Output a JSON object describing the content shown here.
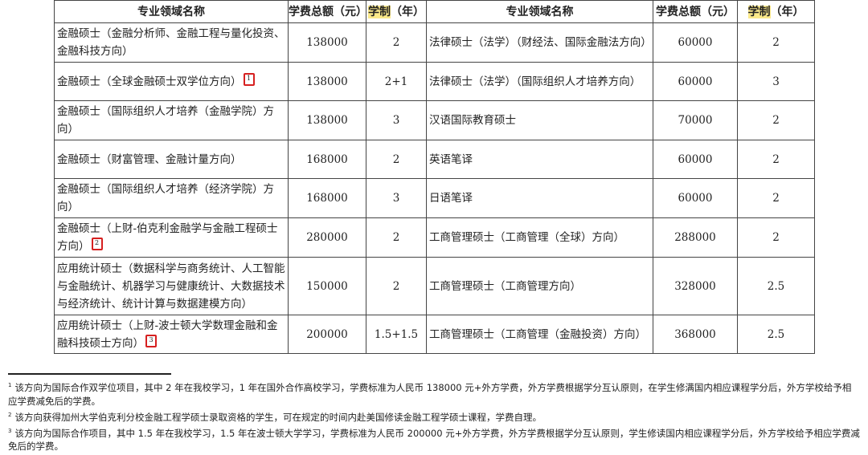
{
  "header": {
    "name": "专业领域名称",
    "fee": "学费总额（元）",
    "duration_hl": "学制",
    "duration_unit": "（年）"
  },
  "colors": {
    "highlight": "#fbe98a",
    "footnote_box": "#d62020"
  },
  "rows": [
    {
      "l_name": "金融硕士（金融分析师、金融工程与量化投资、金融科技方向）",
      "l_fn": "",
      "l_fee": "138000",
      "l_dur": "2",
      "r_name": "法律硕士（法学）（财经法、国际金融法方向）",
      "r_fee": "60000",
      "r_dur": "2"
    },
    {
      "l_name": "金融硕士（全球金融硕士双学位方向）",
      "l_fn": "1",
      "l_fee": "138000",
      "l_dur": "2+1",
      "r_name": "法律硕士（法学）（国际组织人才培养方向）",
      "r_fee": "60000",
      "r_dur": "3"
    },
    {
      "l_name": "金融硕士（国际组织人才培养（金融学院）方向）",
      "l_fn": "",
      "l_fee": "138000",
      "l_dur": "3",
      "r_name": "汉语国际教育硕士",
      "r_fee": "70000",
      "r_dur": "2"
    },
    {
      "l_name": "金融硕士（财富管理、金融计量方向）",
      "l_fn": "",
      "l_fee": "168000",
      "l_dur": "2",
      "r_name": "英语笔译",
      "r_fee": "60000",
      "r_dur": "2"
    },
    {
      "l_name": "金融硕士（国际组织人才培养（经济学院）方向）",
      "l_fn": "",
      "l_fee": "168000",
      "l_dur": "3",
      "r_name": "日语笔译",
      "r_fee": "60000",
      "r_dur": "2"
    },
    {
      "l_name": "金融硕士（上财-伯克利金融学与金融工程硕士方向）",
      "l_fn": "2",
      "l_fee": "280000",
      "l_dur": "2",
      "r_name": "工商管理硕士（工商管理（全球）方向）",
      "r_fee": "288000",
      "r_dur": "2"
    },
    {
      "l_name": "应用统计硕士（数据科学与商务统计、人工智能与金融统计、机器学习与健康统计、大数据技术与经济统计、统计计算与数据建模方向）",
      "l_fn": "",
      "l_fee": "150000",
      "l_dur": "2",
      "r_name": "工商管理硕士（工商管理方向）",
      "r_fee": "328000",
      "r_dur": "2.5"
    },
    {
      "l_name": "应用统计硕士（上财-波士顿大学数理金融和金融科技硕士方向）",
      "l_fn": "3",
      "l_fee": "200000",
      "l_dur": "1.5+1.5",
      "r_name": "工商管理硕士（工商管理（金融投资）方向）",
      "r_fee": "368000",
      "r_dur": "2.5"
    }
  ],
  "footnotes": [
    {
      "mark": "1",
      "text": "该方向为国际合作双学位项目，其中 2 年在我校学习，1 年在国外合作高校学习，学费标准为人民币 138000 元+外方学费，外方学费根据学分互认原则，在学生修满国内相应课程学分后，外方学校给予相应学费减免后的学费。"
    },
    {
      "mark": "2",
      "text": "该方向获得加州大学伯克利分校金融工程学硕士录取资格的学生，可在规定的时间内赴美国修读金融工程学硕士课程，学费自理。"
    },
    {
      "mark": "3",
      "text": "该方向为国际合作项目，其中 1.5 年在我校学习，1.5 年在波士顿大学学习，学费标准为人民币 200000 元+外方学费，外方学费根据学分互认原则，学生修读国内相应课程学分后，外方学校给予相应学费减免后的学费。"
    }
  ]
}
